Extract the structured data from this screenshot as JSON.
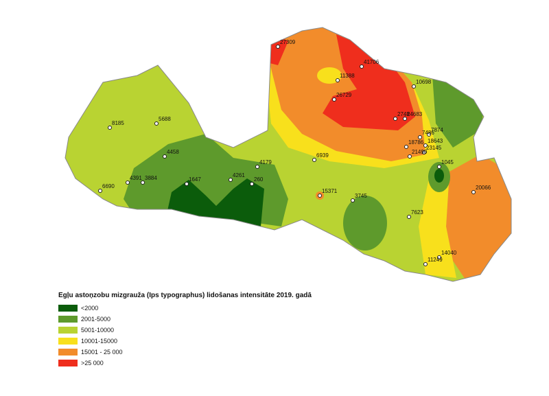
{
  "legend": {
    "title": "Egļu astoņzobu mizgrauža (Ips typographus) lidošanas intensitāte 2019. gadā",
    "items": [
      {
        "label": "<2000",
        "color": "#0b5c0b"
      },
      {
        "label": "2001-5000",
        "color": "#5e9a2c"
      },
      {
        "label": "5001-10000",
        "color": "#b9d332"
      },
      {
        "label": "10001-15000",
        "color": "#f8e01c"
      },
      {
        "label": "15001 - 25 000",
        "color": "#f28c2b"
      },
      {
        "label": ">25 000",
        "color": "#ef2e1d"
      }
    ]
  },
  "points": [
    {
      "label": "27309"
    },
    {
      "label": "41706"
    },
    {
      "label": "11388"
    },
    {
      "label": "10698"
    },
    {
      "label": "26729"
    },
    {
      "label": "2748"
    },
    {
      "label": "24683"
    },
    {
      "label": "8185"
    },
    {
      "label": "5688"
    },
    {
      "label": "7874"
    },
    {
      "label": "7486"
    },
    {
      "label": "18786"
    },
    {
      "label": "18643"
    },
    {
      "label": "23145"
    },
    {
      "label": "21490"
    },
    {
      "label": "4458"
    },
    {
      "label": "6939"
    },
    {
      "label": "4179"
    },
    {
      "label": "1045"
    },
    {
      "label": "4391"
    },
    {
      "label": "3884"
    },
    {
      "label": "1647"
    },
    {
      "label": "4261"
    },
    {
      "label": "260"
    },
    {
      "label": "15371"
    },
    {
      "label": "20066"
    },
    {
      "label": "6690"
    },
    {
      "label": "3745"
    },
    {
      "label": "7623"
    },
    {
      "label": "14040"
    },
    {
      "label": "11249"
    }
  ]
}
